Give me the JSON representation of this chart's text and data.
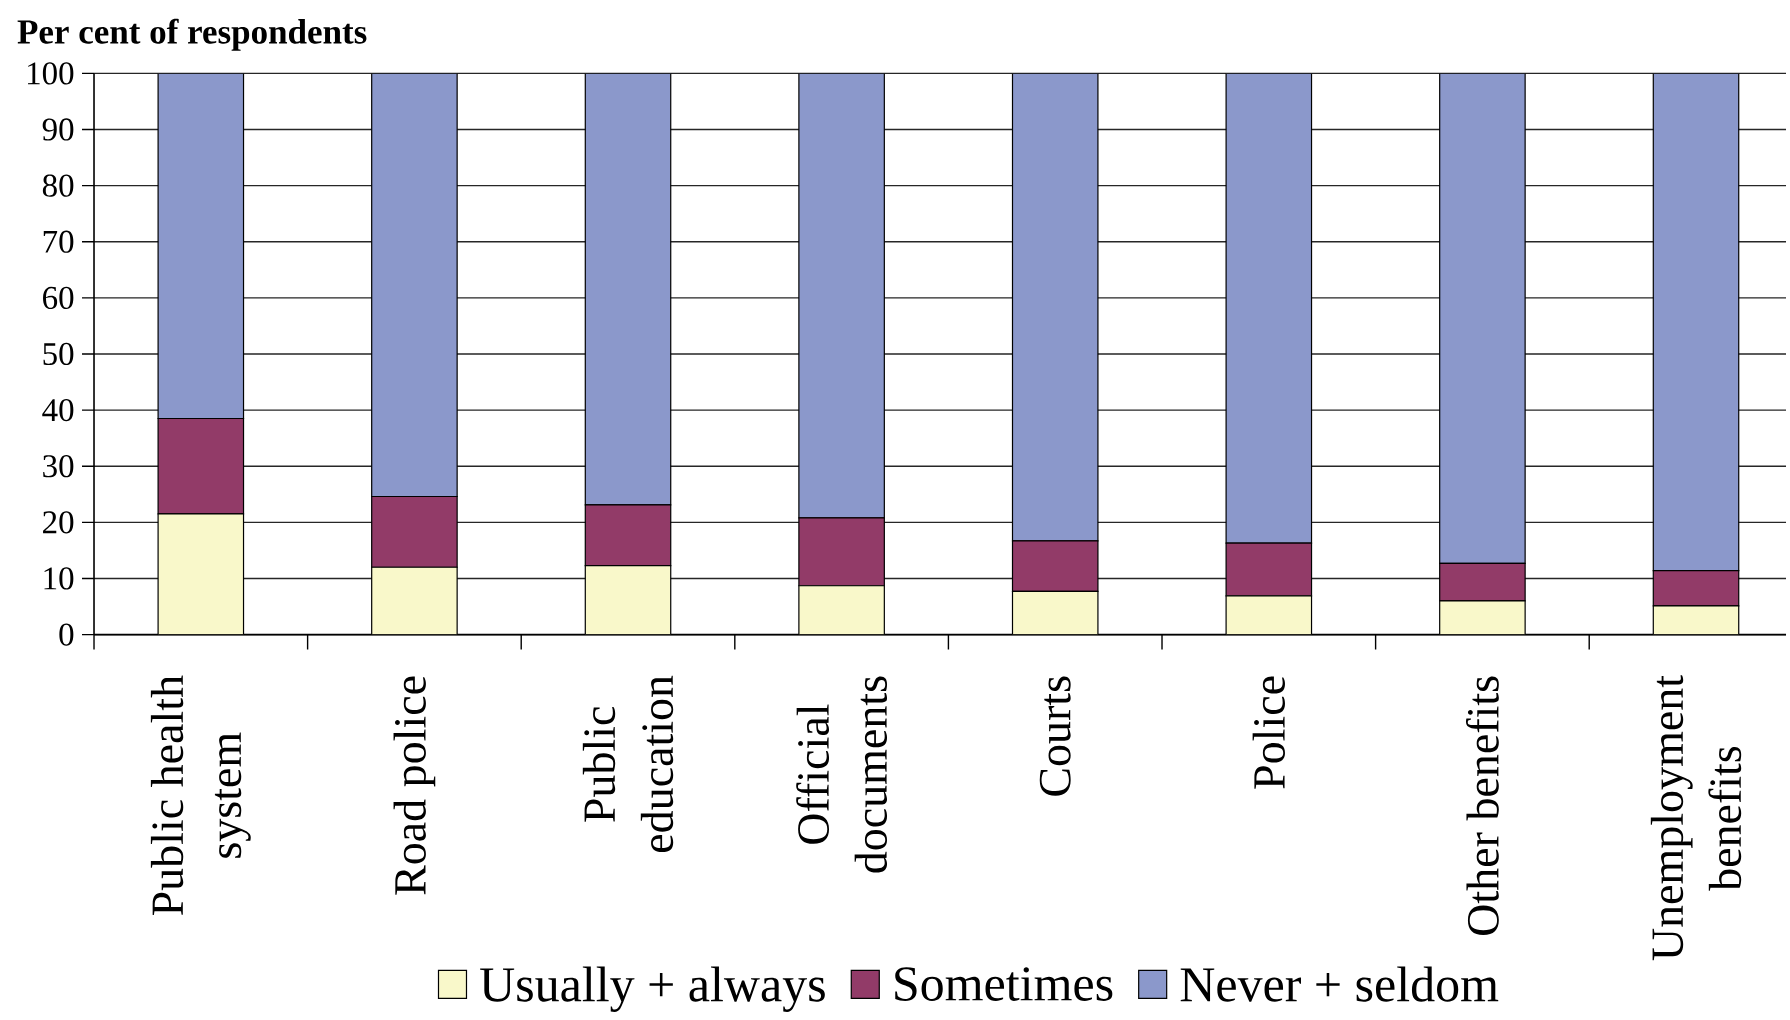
{
  "chart_data": {
    "type": "bar",
    "stacked": true,
    "ylabel": "Per cent of respondents",
    "categories": [
      "Public health system",
      "Road police",
      "Public education",
      "Official documents",
      "Courts",
      "Police",
      "Other benefits",
      "Unemployment benefits"
    ],
    "series": [
      {
        "name": "Usually + always",
        "color": "#f9f8ca",
        "values": [
          21.5,
          12.0,
          12.3,
          8.7,
          7.7,
          6.9,
          6.0,
          5.1
        ]
      },
      {
        "name": "Sometimes",
        "color": "#923b68",
        "values": [
          17.0,
          12.6,
          10.8,
          12.1,
          9.0,
          9.4,
          6.7,
          6.3
        ]
      },
      {
        "name": "Never + seldom",
        "color": "#8b98cb",
        "values": [
          61.5,
          75.4,
          76.9,
          79.2,
          83.3,
          83.7,
          87.3,
          88.6
        ]
      }
    ],
    "ylim": [
      0,
      100
    ],
    "yticks": [
      0,
      10,
      20,
      30,
      40,
      50,
      60,
      70,
      80,
      90,
      100
    ],
    "grid": "y",
    "legend": "bottom"
  }
}
